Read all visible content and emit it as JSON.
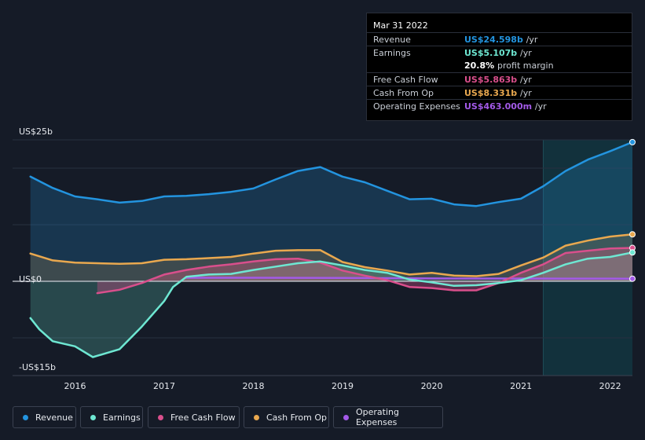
{
  "tooltip": {
    "date": "Mar 31 2022",
    "rows": [
      {
        "label": "Revenue",
        "value": "US$24.598b",
        "unit": "/yr",
        "color": "#2394df"
      },
      {
        "label": "Earnings",
        "value": "US$5.107b",
        "unit": "/yr",
        "color": "#6ee7d2"
      },
      {
        "label": "",
        "value": "20.8%",
        "unit": "profit margin",
        "color": "#ffffff"
      },
      {
        "label": "Free Cash Flow",
        "value": "US$5.863b",
        "unit": "/yr",
        "color": "#d94f8c"
      },
      {
        "label": "Cash From Op",
        "value": "US$8.331b",
        "unit": "/yr",
        "color": "#e9a84f"
      },
      {
        "label": "Operating Expenses",
        "value": "US$463.000m",
        "unit": "/yr",
        "color": "#a35ae8"
      }
    ]
  },
  "legend": [
    {
      "label": "Revenue",
      "color": "#2394df"
    },
    {
      "label": "Earnings",
      "color": "#6ee7d2"
    },
    {
      "label": "Free Cash Flow",
      "color": "#d94f8c"
    },
    {
      "label": "Cash From Op",
      "color": "#e9a84f"
    },
    {
      "label": "Operating Expenses",
      "color": "#a35ae8"
    }
  ],
  "chart_data": {
    "type": "line",
    "title": "",
    "ylim": [
      -15,
      25
    ],
    "y_tick_labels": [
      "US$25b",
      "US$0",
      "-US$15b"
    ],
    "x_tick_labels": [
      "2016",
      "2017",
      "2018",
      "2019",
      "2020",
      "2021",
      "2022"
    ],
    "x_tick_positions": [
      2016,
      2017,
      2018,
      2019,
      2020,
      2021,
      2022
    ],
    "xlim": [
      2015.3,
      2022.25
    ],
    "highlight_start": 2021.25,
    "series": [
      {
        "name": "Revenue",
        "color": "#2394df",
        "fill": true,
        "x": [
          2015.5,
          2015.75,
          2016.0,
          2016.25,
          2016.5,
          2016.75,
          2017.0,
          2017.25,
          2017.5,
          2017.75,
          2018.0,
          2018.25,
          2018.5,
          2018.75,
          2019.0,
          2019.25,
          2019.5,
          2019.75,
          2020.0,
          2020.25,
          2020.5,
          2020.75,
          2021.0,
          2021.25,
          2021.5,
          2021.75,
          2022.0,
          2022.25
        ],
        "values": [
          18.5,
          16.5,
          15.0,
          14.5,
          13.9,
          14.2,
          15.0,
          15.1,
          15.4,
          15.8,
          16.4,
          18.0,
          19.5,
          20.2,
          18.5,
          17.5,
          16.0,
          14.5,
          14.6,
          13.6,
          13.3,
          14.0,
          14.6,
          16.8,
          19.5,
          21.5,
          23.0,
          24.6
        ]
      },
      {
        "name": "Earnings",
        "color": "#6ee7d2",
        "fill": true,
        "x": [
          2015.5,
          2015.6,
          2015.75,
          2016.0,
          2016.2,
          2016.5,
          2016.75,
          2017.0,
          2017.1,
          2017.25,
          2017.5,
          2017.75,
          2018.0,
          2018.25,
          2018.5,
          2018.75,
          2019.0,
          2019.25,
          2019.5,
          2019.75,
          2020.0,
          2020.25,
          2020.5,
          2020.75,
          2021.0,
          2021.25,
          2021.5,
          2021.75,
          2022.0,
          2022.25
        ],
        "values": [
          -6.5,
          -8.5,
          -10.6,
          -11.5,
          -13.4,
          -12.0,
          -8.0,
          -3.5,
          -1.0,
          0.8,
          1.2,
          1.3,
          2.0,
          2.6,
          3.2,
          3.5,
          2.8,
          2.0,
          1.5,
          0.3,
          -0.2,
          -0.8,
          -0.7,
          -0.3,
          0.2,
          1.5,
          3.0,
          4.0,
          4.3,
          5.1
        ]
      },
      {
        "name": "Free Cash Flow",
        "color": "#d94f8c",
        "fill": true,
        "x": [
          2016.25,
          2016.5,
          2016.75,
          2017.0,
          2017.25,
          2017.5,
          2017.75,
          2018.0,
          2018.25,
          2018.5,
          2018.75,
          2019.0,
          2019.25,
          2019.5,
          2019.75,
          2020.0,
          2020.25,
          2020.5,
          2020.75,
          2021.0,
          2021.25,
          2021.5,
          2021.75,
          2022.0,
          2022.25
        ],
        "values": [
          -2.1,
          -1.5,
          -0.3,
          1.2,
          2.0,
          2.6,
          3.0,
          3.5,
          3.9,
          4.0,
          3.3,
          1.9,
          1.0,
          0.2,
          -1.0,
          -1.2,
          -1.6,
          -1.6,
          -0.3,
          1.5,
          3.0,
          5.0,
          5.4,
          5.8,
          5.9
        ]
      },
      {
        "name": "Cash From Op",
        "color": "#e9a84f",
        "fill": true,
        "x": [
          2015.5,
          2015.75,
          2016.0,
          2016.25,
          2016.5,
          2016.75,
          2017.0,
          2017.25,
          2017.5,
          2017.75,
          2018.0,
          2018.25,
          2018.5,
          2018.75,
          2019.0,
          2019.25,
          2019.5,
          2019.75,
          2020.0,
          2020.25,
          2020.5,
          2020.75,
          2021.0,
          2021.25,
          2021.5,
          2021.75,
          2022.0,
          2022.25
        ],
        "values": [
          4.9,
          3.7,
          3.3,
          3.2,
          3.1,
          3.2,
          3.8,
          3.9,
          4.1,
          4.3,
          4.9,
          5.4,
          5.5,
          5.5,
          3.4,
          2.5,
          1.9,
          1.2,
          1.5,
          1.0,
          0.9,
          1.3,
          2.8,
          4.2,
          6.3,
          7.2,
          7.9,
          8.3
        ]
      },
      {
        "name": "Operating Expenses",
        "color": "#a35ae8",
        "fill": false,
        "x": [
          2017.25,
          2017.5,
          2018.0,
          2018.5,
          2019.0,
          2019.5,
          2020.0,
          2020.5,
          2021.0,
          2021.5,
          2022.0,
          2022.25
        ],
        "values": [
          0.62,
          0.62,
          0.62,
          0.61,
          0.6,
          0.55,
          0.5,
          0.48,
          0.48,
          0.47,
          0.47,
          0.46
        ]
      }
    ]
  }
}
